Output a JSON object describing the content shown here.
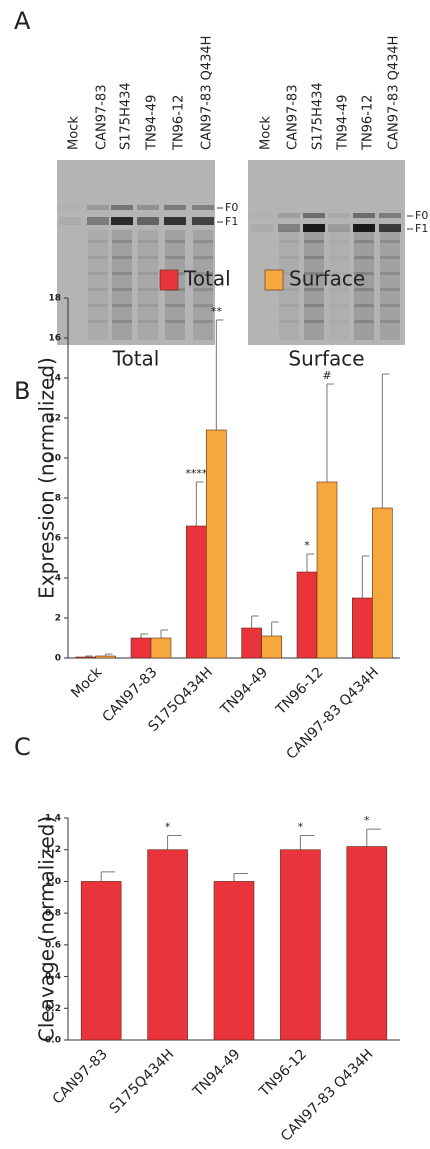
{
  "panel_labels": [
    "A",
    "B",
    "C"
  ],
  "panel_a": {
    "gels": [
      {
        "lanes": [
          "Mock",
          "CAN97-83",
          "S175H434",
          "TN94-49",
          "TN96-12",
          "CAN97-83 Q434H"
        ],
        "bands": [
          "F0",
          "F1"
        ],
        "caption": "Total"
      },
      {
        "lanes": [
          "Mock",
          "CAN97-83",
          "S175H434",
          "TN94-49",
          "TN96-12",
          "CAN97-83 Q434H"
        ],
        "bands": [
          "F0",
          "F1"
        ],
        "caption": "Surface"
      }
    ]
  },
  "chart_data": [
    {
      "type": "bar",
      "y_label": "Expression (normalized)",
      "categories": [
        "Mock",
        "CAN97-83",
        "S175Q434H",
        "TN94-49",
        "TN96-12",
        "CAN97-83 Q434H"
      ],
      "series": [
        {
          "name": "Total",
          "color": "#e8343a",
          "values": [
            0.05,
            1.0,
            6.6,
            1.5,
            4.3,
            3.0
          ],
          "errors": [
            0.05,
            0.2,
            2.2,
            0.6,
            0.9,
            2.1
          ],
          "annotations": [
            null,
            null,
            "****",
            null,
            "*",
            null
          ]
        },
        {
          "name": "Surface",
          "color": "#f6a83c",
          "values": [
            0.1,
            1.0,
            11.4,
            1.1,
            8.8,
            7.5
          ],
          "errors": [
            0.1,
            0.4,
            5.5,
            0.7,
            4.9,
            6.7
          ],
          "annotations": [
            null,
            null,
            "**",
            null,
            "#",
            null
          ]
        }
      ],
      "ylim": [
        0,
        18
      ],
      "yticks": [
        0,
        2,
        4,
        6,
        8,
        10,
        12,
        14,
        16,
        18
      ],
      "legend": "top"
    },
    {
      "type": "bar",
      "y_label": "Cleavage (normalized)",
      "categories": [
        "CAN97-83",
        "S175Q434H",
        "TN94-49",
        "TN96-12",
        "CAN97-83 Q434H"
      ],
      "values": [
        1.0,
        1.2,
        1.0,
        1.2,
        1.22
      ],
      "errors": [
        0.06,
        0.09,
        0.05,
        0.09,
        0.11
      ],
      "annotations": [
        null,
        "*",
        null,
        "*",
        "*"
      ],
      "color": "#e8343a",
      "ylim": [
        0,
        1.4
      ],
      "yticks": [
        {
          "value": 0,
          "label": "0.0"
        },
        0.2,
        0.4,
        0.6,
        0.8,
        {
          "value": 1,
          "label": "1.0"
        },
        1.2,
        1.4
      ]
    }
  ]
}
